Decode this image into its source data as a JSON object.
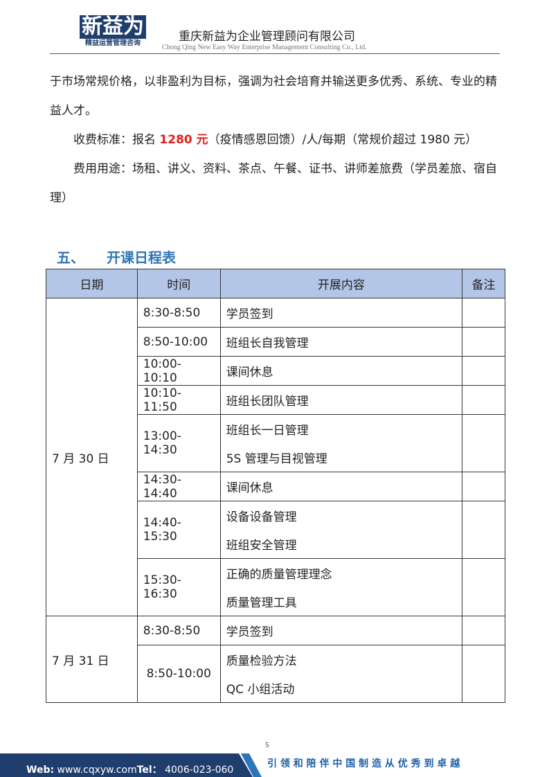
{
  "header": {
    "logo_main": "新益为",
    "logo_sub": "精益运营管理咨询",
    "company": "重庆新益为企业管理顾问有限公司",
    "company_en": "Chong Qing New Easy Way Enterprise Management Consulting Co., Ltd."
  },
  "body": {
    "p0": "于市场常规价格，以非盈利为目标，强调为社会培育并输送更多优秀、系统、专业的精益人才。",
    "p1": {
      "before": "收费标准：报名 ",
      "highlight": "1280 元",
      "after": "（疫情感恩回馈）/人/每期（常规价超过 1980 元）"
    },
    "p2": "费用用途：场租、讲义、资料、茶点、午餐、证书、讲师差旅费（学员差旅、宿自理）"
  },
  "section": {
    "number": "五、",
    "title": "开课日程表"
  },
  "table": {
    "header": [
      "日期",
      "时间",
      "开展内容",
      "备注"
    ],
    "groups": [
      {
        "date": "7 月  30 日",
        "slots": [
          {
            "time": "8:30-8:50",
            "items": [
              "学员签到"
            ]
          },
          {
            "time": "8:50-10:00",
            "items": [
              "班组长自我管理"
            ]
          },
          {
            "time": "10:00-10:10",
            "items": [
              "课间休息"
            ]
          },
          {
            "time": "10:10-11:50",
            "items": [
              "班组长团队管理"
            ]
          },
          {
            "time": "13:00-14:30",
            "items": [
              "班组长一日管理",
              "5S 管理与目视管理"
            ]
          },
          {
            "time": "14:30-14:40",
            "items": [
              "课间休息"
            ]
          },
          {
            "time": "14:40-15:30",
            "items": [
              "设备设备管理",
              "班组安全管理"
            ]
          },
          {
            "time": "15:30-16:30",
            "items": [
              "正确的质量管理理念",
              "质量管理工具"
            ]
          }
        ]
      },
      {
        "date": "7 月  31 日",
        "slots": [
          {
            "time": "8:30-8:50",
            "items": [
              "学员签到"
            ]
          },
          {
            "time": "8:50-10:00",
            "items": [
              "质量检验方法",
              "QC 小组活动"
            ]
          }
        ]
      }
    ]
  },
  "footer": {
    "page": "5",
    "web_label": "Web:",
    "web": "www.cqxyw.com",
    "tel_label": "Tel：",
    "tel": "4006-023-060",
    "slogan": "引 领 和 陪 伴 中 国 制 造 从 优 秀 到 卓 越"
  }
}
